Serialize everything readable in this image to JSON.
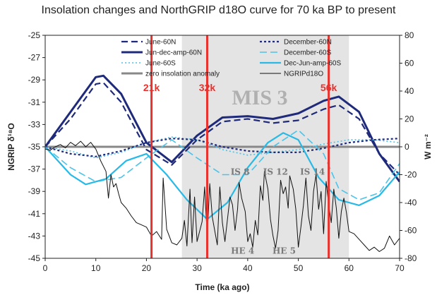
{
  "chart_data": {
    "type": "line",
    "title": "Insolation changes and NorthGRIP d18O curve for 70 ka BP to present",
    "xlabel": "Time (ka ago)",
    "ylabel_left": "NGRIP δ¹⁸O",
    "ylabel_right": "W m⁻²",
    "xlim": [
      0,
      70
    ],
    "ylim_left": [
      -45,
      -25
    ],
    "ylim_right": [
      -80,
      80
    ],
    "x_ticks": [
      0,
      10,
      20,
      30,
      40,
      50,
      60,
      70
    ],
    "y_left_ticks": [
      -45,
      -43,
      -41,
      -39,
      -37,
      -35,
      -33,
      -31,
      -29,
      -27,
      -25
    ],
    "y_right_ticks": [
      -80,
      -60,
      -40,
      -20,
      0,
      20,
      40,
      60,
      80
    ],
    "shaded_region": {
      "label": "MIS 3",
      "x": [
        27,
        60
      ]
    },
    "events": [
      {
        "label": "21k",
        "x": 21
      },
      {
        "label": "32k",
        "x": 32
      },
      {
        "label": "56k",
        "x": 56
      }
    ],
    "annotations": [
      {
        "label": "IS 8",
        "x": 38.5,
        "y": -37.5
      },
      {
        "label": "IS 12",
        "x": 45.5,
        "y": -37.5
      },
      {
        "label": "IS 14",
        "x": 52.8,
        "y": -37.5
      },
      {
        "label": "HE 4",
        "x": 39.0,
        "y": -44.6
      },
      {
        "label": "HE 5",
        "x": 47.2,
        "y": -44.6
      }
    ],
    "zero_line": {
      "name": "zero insolation anomaly",
      "y_right": 0,
      "color": "#888888"
    },
    "series": [
      {
        "name": "June-60N",
        "axis": "right",
        "color": "#1f2a7a",
        "dash": "9,5",
        "width": 2.2,
        "x": [
          0,
          5,
          10,
          11.5,
          15,
          20,
          25,
          30,
          35,
          40,
          45,
          50,
          55,
          58,
          62,
          66,
          70
        ],
        "y": [
          0,
          20,
          45,
          46,
          32,
          -2,
          -13,
          5,
          18,
          20,
          17,
          19,
          27,
          30,
          20,
          -5,
          -20
        ]
      },
      {
        "name": "Jun-dec-amp-60N",
        "axis": "right",
        "color": "#1f2a7a",
        "dash": "",
        "width": 3,
        "x": [
          0,
          5,
          10,
          11.5,
          15,
          20,
          25,
          30,
          35,
          40,
          45,
          50,
          55,
          58,
          62,
          66,
          70
        ],
        "y": [
          0,
          25,
          50,
          51,
          38,
          3,
          -11,
          8,
          21,
          22,
          20,
          24,
          33,
          36,
          25,
          -5,
          -25
        ]
      },
      {
        "name": "June-60S",
        "axis": "right",
        "color": "#4cc3e8",
        "dash": "2,3",
        "width": 1.6,
        "x": [
          0,
          5,
          10,
          15,
          20,
          25,
          30,
          35,
          40,
          45,
          50,
          55,
          60,
          65,
          70
        ],
        "y": [
          0,
          -3,
          -8,
          -4,
          3,
          7,
          5,
          -2,
          -6,
          -4,
          -2,
          2,
          5,
          5,
          3
        ]
      },
      {
        "name": "December-60N",
        "axis": "right",
        "color": "#1f2a7a",
        "dash": "3,3",
        "width": 2.2,
        "x": [
          0,
          5,
          10,
          15,
          20,
          25,
          30,
          35,
          40,
          45,
          50,
          55,
          60,
          65,
          70
        ],
        "y": [
          0,
          -5,
          -7,
          -3,
          3,
          6,
          5,
          0,
          -3,
          -4,
          -4,
          -1,
          3,
          5,
          6
        ]
      },
      {
        "name": "December-60S",
        "axis": "right",
        "color": "#4cc3e8",
        "dash": "10,5",
        "width": 1.6,
        "x": [
          0,
          5,
          10,
          15,
          20,
          25,
          30,
          35,
          40,
          45,
          50,
          55,
          58,
          62,
          66,
          70
        ],
        "y": [
          0,
          -15,
          -25,
          -22,
          -8,
          5,
          -8,
          -20,
          -20,
          0,
          12,
          -5,
          -30,
          -38,
          -33,
          -12
        ]
      },
      {
        "name": "Dec-Jun-amp-60S",
        "axis": "right",
        "color": "#28b9e6",
        "dash": "",
        "width": 2.2,
        "x": [
          0,
          5,
          8,
          12,
          16,
          20,
          24,
          28,
          32,
          36,
          40,
          44,
          47,
          50,
          54,
          58,
          62,
          66,
          70
        ],
        "y": [
          0,
          -20,
          -27,
          -23,
          -10,
          -5,
          -20,
          -38,
          -52,
          -40,
          -15,
          3,
          10,
          5,
          -22,
          -38,
          -42,
          -35,
          -18
        ]
      },
      {
        "name": "NGRIPd18O",
        "axis": "left",
        "color": "#111111",
        "dash": "",
        "width": 1,
        "x": [
          0,
          1,
          2,
          3,
          4,
          5,
          6,
          7,
          8,
          9,
          10,
          11,
          12,
          12.5,
          13,
          13.5,
          14,
          14.5,
          15,
          16,
          17,
          18,
          19,
          20,
          21,
          22,
          23,
          23.3,
          24,
          25,
          26,
          27,
          27.5,
          28,
          28.6,
          29,
          29.5,
          30,
          31,
          31.5,
          32,
          32.5,
          33,
          34,
          34.5,
          35,
          35.5,
          36,
          36.5,
          37,
          37.5,
          38,
          38.3,
          38.8,
          39.5,
          40,
          40.5,
          41,
          41.5,
          42,
          42.5,
          43,
          43.3,
          44,
          44.5,
          45,
          45.5,
          46,
          46.5,
          47,
          47.5,
          48,
          48.3,
          49,
          49.5,
          50,
          50.5,
          51,
          51.5,
          52,
          52.5,
          53,
          53.5,
          54,
          54.5,
          55,
          55.5,
          56,
          56.5,
          57,
          57.5,
          58,
          58.5,
          59,
          59.5,
          60,
          61,
          62,
          63,
          64,
          65,
          66,
          67,
          68,
          69,
          70
        ],
        "y": [
          -35.2,
          -35.3,
          -35.0,
          -34.8,
          -35.1,
          -34.6,
          -34.9,
          -34.5,
          -35.0,
          -34.6,
          -35.2,
          -36.3,
          -37.2,
          -39.6,
          -37.5,
          -38.6,
          -38.3,
          -39.2,
          -40.0,
          -40.5,
          -41.2,
          -41.8,
          -42.0,
          -42.2,
          -43.0,
          -42.6,
          -43.3,
          -37.8,
          -42.4,
          -43.6,
          -43.8,
          -43.2,
          -41.6,
          -43.9,
          -38.8,
          -43.6,
          -39.5,
          -43.5,
          -41.7,
          -38.6,
          -43.0,
          -38.3,
          -41.3,
          -43.8,
          -38.6,
          -41.8,
          -43.5,
          -41.5,
          -39.5,
          -40.2,
          -42.5,
          -40.6,
          -38.2,
          -39.6,
          -40.8,
          -43.5,
          -42.8,
          -44.0,
          -41.6,
          -42.9,
          -38.5,
          -39.8,
          -37.2,
          -38.8,
          -41.5,
          -43.0,
          -44.1,
          -42.5,
          -38.0,
          -39.2,
          -38.6,
          -40.5,
          -37.6,
          -38.8,
          -40.6,
          -44.0,
          -42.2,
          -40.3,
          -37.8,
          -41.2,
          -42.5,
          -39.0,
          -37.5,
          -40.6,
          -39.0,
          -42.8,
          -38.1,
          -40.2,
          -41.8,
          -38.8,
          -40.5,
          -43.2,
          -40.8,
          -39.6,
          -40.9,
          -42.6,
          -42.8,
          -43.3,
          -43.8,
          -44.3,
          -44.0,
          -44.4,
          -44.1,
          -43.0,
          -43.8,
          -43.2
        ]
      }
    ],
    "legend": {
      "placement": "top",
      "entries": [
        "June-60N",
        "December-60N",
        "Jun-dec-amp-60N",
        "December-60S",
        "June-60S",
        "Dec-Jun-amp-60S",
        "zero insolation anomaly",
        "NGRIPd18O"
      ]
    }
  }
}
